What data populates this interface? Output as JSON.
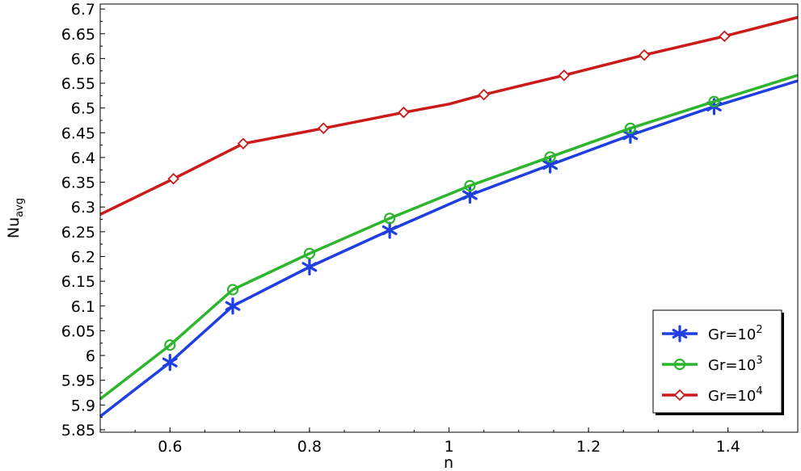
{
  "chart_data": {
    "type": "line",
    "xlabel": "n",
    "ylabel": {
      "main": "Nu",
      "sub": "avg"
    },
    "xlim": [
      0.5,
      1.5
    ],
    "ylim": [
      5.845,
      6.71
    ],
    "x_ticks": [
      {
        "value": 0.6,
        "label": "0.6"
      },
      {
        "value": 0.8,
        "label": "0.8"
      },
      {
        "value": 1.0,
        "label": "1"
      },
      {
        "value": 1.2,
        "label": "1.2"
      },
      {
        "value": 1.4,
        "label": "1.4"
      }
    ],
    "y_ticks": [
      {
        "value": 5.85,
        "label": "5.85"
      },
      {
        "value": 5.9,
        "label": "5.9"
      },
      {
        "value": 5.95,
        "label": "5.95"
      },
      {
        "value": 6.0,
        "label": "6"
      },
      {
        "value": 6.05,
        "label": "6.05"
      },
      {
        "value": 6.1,
        "label": "6.1"
      },
      {
        "value": 6.15,
        "label": "6.15"
      },
      {
        "value": 6.2,
        "label": "6.2"
      },
      {
        "value": 6.25,
        "label": "6.25"
      },
      {
        "value": 6.3,
        "label": "6.3"
      },
      {
        "value": 6.35,
        "label": "6.35"
      },
      {
        "value": 6.4,
        "label": "6.4"
      },
      {
        "value": 6.45,
        "label": "6.45"
      },
      {
        "value": 6.5,
        "label": "6.5"
      },
      {
        "value": 6.55,
        "label": "6.55"
      },
      {
        "value": 6.6,
        "label": "6.6"
      },
      {
        "value": 6.65,
        "label": "6.65"
      },
      {
        "value": 6.7,
        "label": "6.7"
      }
    ],
    "grid": false,
    "legend_position": "bottom-right",
    "series": [
      {
        "name": "Gr=10",
        "name_sup": "2",
        "color": "#1f3fe0",
        "marker": "asterisk",
        "line": {
          "x": [
            0.5,
            0.6,
            0.69,
            0.8,
            0.915,
            1.03,
            1.145,
            1.26,
            1.38,
            1.5
          ],
          "y": [
            5.877,
            5.986,
            6.1,
            6.179,
            6.253,
            6.324,
            6.385,
            6.445,
            6.503,
            6.555
          ]
        },
        "markers": {
          "x": [
            0.6,
            0.69,
            0.8,
            0.915,
            1.03,
            1.145,
            1.26,
            1.38
          ],
          "y": [
            5.986,
            6.1,
            6.179,
            6.253,
            6.324,
            6.385,
            6.445,
            6.503
          ]
        }
      },
      {
        "name": "Gr=10",
        "name_sup": "3",
        "color": "#2db52d",
        "marker": "circle",
        "line": {
          "x": [
            0.5,
            0.6,
            0.69,
            0.8,
            0.915,
            1.03,
            1.145,
            1.26,
            1.38,
            1.5
          ],
          "y": [
            5.912,
            6.021,
            6.133,
            6.206,
            6.277,
            6.343,
            6.401,
            6.459,
            6.513,
            6.566
          ]
        },
        "markers": {
          "x": [
            0.6,
            0.69,
            0.8,
            0.915,
            1.03,
            1.145,
            1.26,
            1.38
          ],
          "y": [
            6.021,
            6.133,
            6.206,
            6.277,
            6.343,
            6.401,
            6.459,
            6.513
          ]
        }
      },
      {
        "name": "Gr=10",
        "name_sup": "4",
        "color": "#cc1a1a",
        "marker": "diamond",
        "line": {
          "x": [
            0.5,
            0.605,
            0.705,
            0.82,
            0.935,
            1.0,
            1.05,
            1.165,
            1.28,
            1.395,
            1.5
          ],
          "y": [
            6.285,
            6.357,
            6.428,
            6.459,
            6.491,
            6.508,
            6.527,
            6.566,
            6.607,
            6.645,
            6.683
          ]
        },
        "markers": {
          "x": [
            0.605,
            0.705,
            0.82,
            0.935,
            1.05,
            1.165,
            1.28,
            1.395
          ],
          "y": [
            6.357,
            6.428,
            6.459,
            6.491,
            6.527,
            6.566,
            6.607,
            6.645
          ]
        }
      }
    ]
  }
}
